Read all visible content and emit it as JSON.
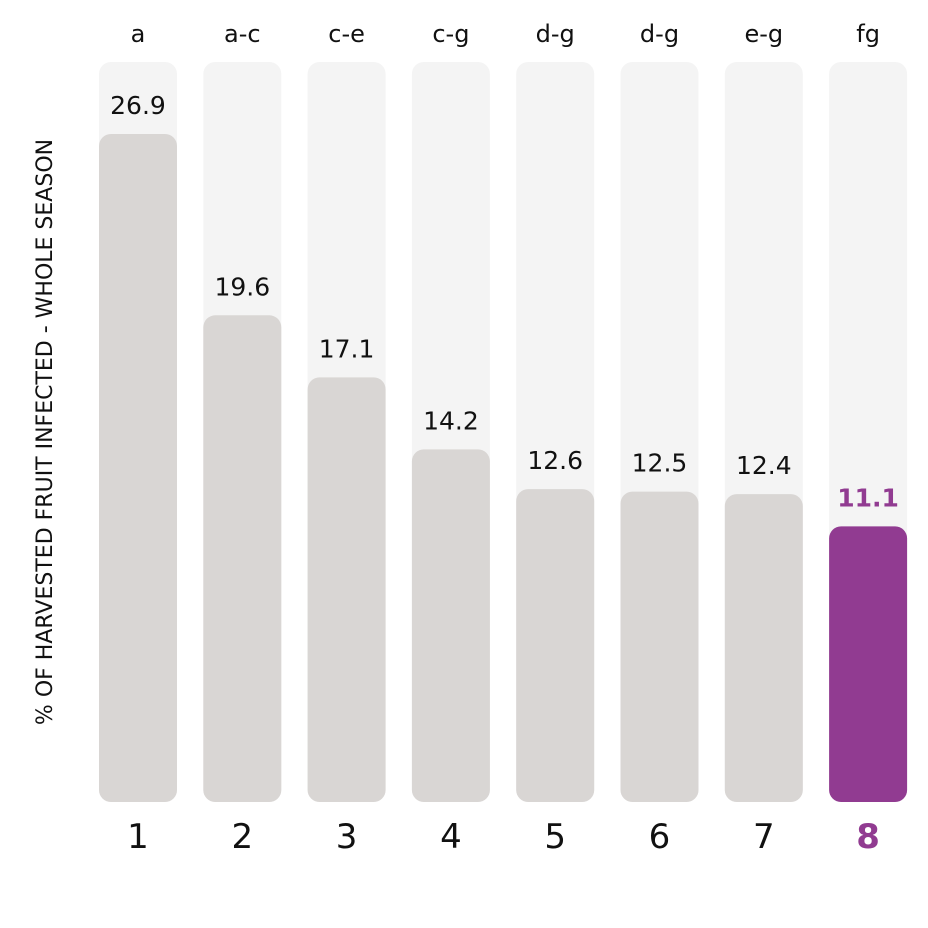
{
  "chart_data": {
    "type": "bar",
    "ylabel": "% OF HARVESTED FRUIT INFECTED - WHOLE SEASON",
    "categories": [
      "1",
      "2",
      "3",
      "4",
      "5",
      "6",
      "7",
      "8"
    ],
    "values": [
      26.9,
      19.6,
      17.1,
      14.2,
      12.6,
      12.5,
      12.4,
      11.1
    ],
    "value_labels": [
      "26.9",
      "19.6",
      "17.1",
      "14.2",
      "12.6",
      "12.5",
      "12.4",
      "11.1"
    ],
    "group_letters": [
      "a",
      "a-c",
      "c-e",
      "c-g",
      "d-g",
      "d-g",
      "e-g",
      "fg"
    ],
    "ylim": [
      0,
      29.8
    ],
    "highlight_index": 7,
    "grid": false,
    "colors": {
      "bar": "#d9d6d4",
      "track": "#f4f4f4",
      "highlight": "#913b91",
      "text": "#111111"
    }
  }
}
